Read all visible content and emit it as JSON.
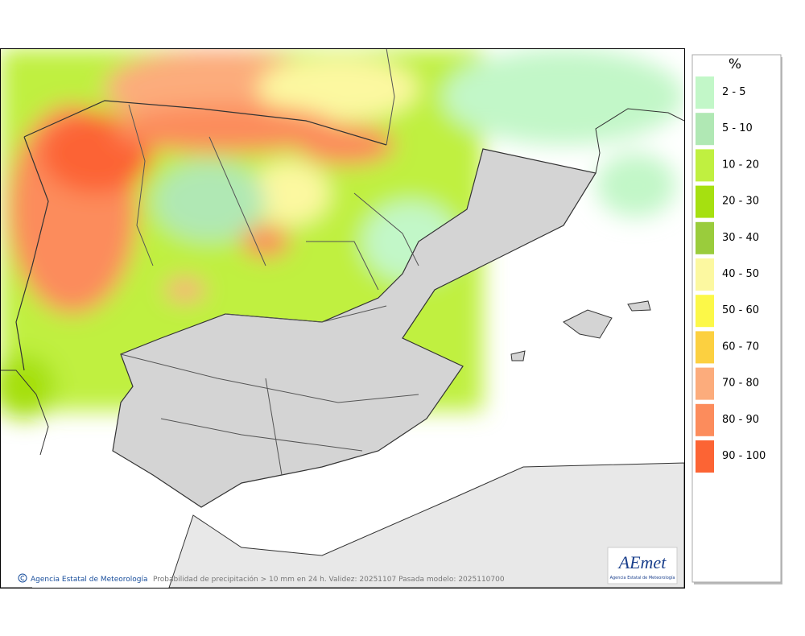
{
  "legend": {
    "title": "%",
    "items": [
      {
        "label": "2 - 5",
        "color": "#c2f7c8"
      },
      {
        "label": "5 - 10",
        "color": "#b0e8b4"
      },
      {
        "label": "10 - 20",
        "color": "#c0f040"
      },
      {
        "label": "20 - 30",
        "color": "#a6e010"
      },
      {
        "label": "30 - 40",
        "color": "#9acc3c"
      },
      {
        "label": "40 - 50",
        "color": "#fcf8a0"
      },
      {
        "label": "50 - 60",
        "color": "#fcf848"
      },
      {
        "label": "60 - 70",
        "color": "#fcd040"
      },
      {
        "label": "70 - 80",
        "color": "#fcac7c"
      },
      {
        "label": "80 - 90",
        "color": "#fc8c5c"
      },
      {
        "label": "90 - 100",
        "color": "#fc6434"
      }
    ]
  },
  "footer": {
    "credit": "Agencia Estatal de Meteorología",
    "caption": "Probabilidad de precipitación > 10 mm en 24 h. Validez: 20251107 Pasada modelo: 2025110700"
  },
  "logo": {
    "text": "AEmet",
    "subtitle": "Agencia Estatal de Meteorología"
  }
}
